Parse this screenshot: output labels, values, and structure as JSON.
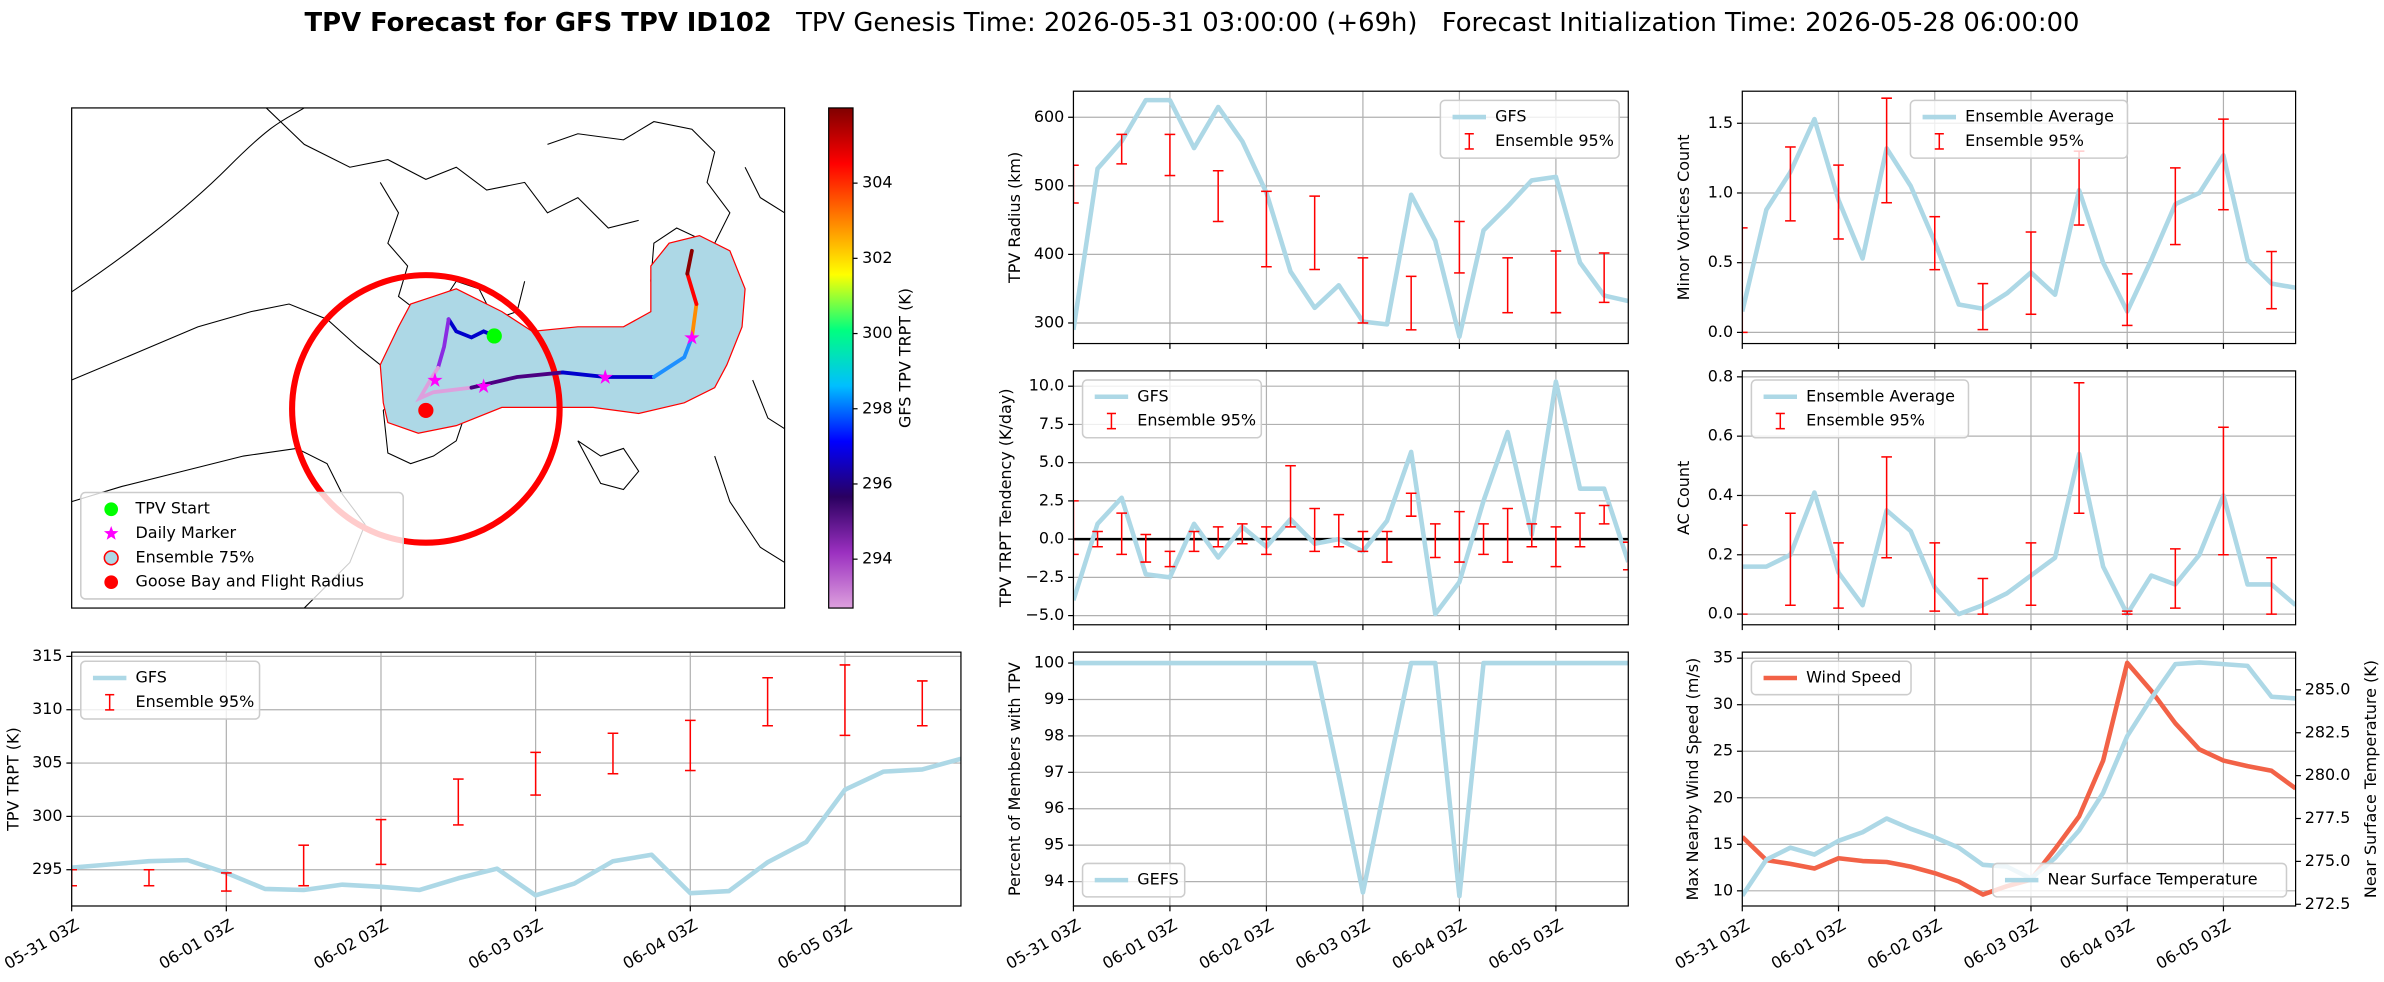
{
  "figure": {
    "title": "TPV Forecast for GFS TPV ID102",
    "genesis": "TPV Genesis Time: 2026-05-31 03:00:00 (+69h)",
    "init": "Forecast Initialization Time: 2026-05-28 06:00:00"
  },
  "chart_data": [
    {
      "type": "map",
      "legend": "lower left",
      "legend_items": [
        {
          "label": "TPV Start",
          "marker": "circle",
          "color": "#00ff00"
        },
        {
          "label": "Daily Marker",
          "marker": "star",
          "color": "#ff00ff"
        },
        {
          "label": "Ensemble 75%",
          "marker": "circle",
          "color": "#add8e6",
          "edgecolor": "#ff0000"
        },
        {
          "label": "Goose Bay and Flight Radius",
          "marker": "circle",
          "color": "#ff0000"
        }
      ],
      "colorbar": {
        "label": "GFS TPV TRPT (K)",
        "clim": [
          292.7,
          306.0
        ],
        "ticks": [
          294,
          296,
          298,
          300,
          302,
          304
        ],
        "colormap": [
          "#dda0dd",
          "#9b30c0",
          "#2a0060",
          "#0000ff",
          "#00bfff",
          "#00ff80",
          "#ffff00",
          "#ff8000",
          "#ff0000",
          "#800000"
        ]
      }
    },
    {
      "type": "line",
      "ylabel": "TPV Radius (km)",
      "grid": true,
      "legend": "upper right",
      "xtick_labels": false,
      "x": [
        "05-31 03Z",
        "05-31 09Z",
        "05-31 15Z",
        "05-31 21Z",
        "06-01 03Z",
        "06-01 09Z",
        "06-01 15Z",
        "06-01 21Z",
        "06-02 03Z",
        "06-02 09Z",
        "06-02 15Z",
        "06-02 21Z",
        "06-03 03Z",
        "06-03 09Z",
        "06-03 15Z",
        "06-03 21Z",
        "06-04 03Z",
        "06-04 09Z",
        "06-04 15Z",
        "06-04 21Z",
        "06-05 03Z",
        "06-05 09Z",
        "06-05 15Z",
        "06-05 21Z"
      ],
      "xlim": [
        "05-31 03Z",
        "06-05 21Z"
      ],
      "xticks": [
        "05-31 03Z",
        "06-01 03Z",
        "06-02 03Z",
        "06-03 03Z",
        "06-04 03Z",
        "06-05 03Z"
      ],
      "ylim": [
        270,
        638
      ],
      "yticks": [
        300,
        400,
        500,
        600
      ],
      "series": [
        {
          "name": "GFS",
          "color": "#add8e6",
          "values": [
            290,
            525,
            565,
            625,
            625,
            555,
            615,
            565,
            490,
            375,
            322,
            355,
            302,
            298,
            487,
            420,
            280,
            435,
            470,
            508,
            513,
            388,
            340,
            332
          ]
        }
      ],
      "errorbars": {
        "name": "Ensemble 95%",
        "color": "#ff0000",
        "x": [
          "05-31 03Z",
          "05-31 15Z",
          "06-01 03Z",
          "06-01 15Z",
          "06-02 03Z",
          "06-02 15Z",
          "06-03 03Z",
          "06-03 15Z",
          "06-04 03Z",
          "06-04 15Z",
          "06-05 03Z",
          "06-05 15Z"
        ],
        "low": [
          475,
          532,
          515,
          448,
          382,
          378,
          300,
          290,
          373,
          315,
          315,
          330
        ],
        "high": [
          530,
          575,
          575,
          522,
          492,
          485,
          395,
          368,
          448,
          395,
          405,
          402
        ]
      }
    },
    {
      "type": "line",
      "ylabel": "TPV TRPT Tendency (K/day)",
      "grid": true,
      "legend": "upper left",
      "xtick_labels": false,
      "hline": 0,
      "hline_color": "#000000",
      "x": [
        "05-31 03Z",
        "05-31 09Z",
        "05-31 15Z",
        "05-31 21Z",
        "06-01 03Z",
        "06-01 09Z",
        "06-01 15Z",
        "06-01 21Z",
        "06-02 03Z",
        "06-02 09Z",
        "06-02 15Z",
        "06-02 21Z",
        "06-03 03Z",
        "06-03 09Z",
        "06-03 15Z",
        "06-03 21Z",
        "06-04 03Z",
        "06-04 09Z",
        "06-04 15Z",
        "06-04 21Z",
        "06-05 03Z",
        "06-05 09Z",
        "06-05 15Z",
        "06-05 21Z"
      ],
      "xlim": [
        "05-31 03Z",
        "06-05 21Z"
      ],
      "xticks": [
        "05-31 03Z",
        "06-01 03Z",
        "06-02 03Z",
        "06-03 03Z",
        "06-04 03Z",
        "06-05 03Z"
      ],
      "ylim": [
        -5.6,
        11
      ],
      "yticks": [
        {
          "value": -5,
          "label": "−5.0"
        },
        {
          "value": -2.5,
          "label": "−2.5"
        },
        {
          "value": 0,
          "label": "0.0"
        },
        2.5,
        {
          "value": 5,
          "label": "5.0"
        },
        7.5,
        {
          "value": 10,
          "label": "10.0"
        }
      ],
      "series": [
        {
          "name": "GFS",
          "color": "#add8e6",
          "values": [
            -4.0,
            1.0,
            2.7,
            -2.3,
            -2.5,
            1.0,
            -1.2,
            0.8,
            -0.5,
            1.3,
            -0.3,
            0.0,
            -0.8,
            1.2,
            5.7,
            -4.9,
            -2.8,
            2.5,
            7.0,
            0.3,
            10.3,
            3.3,
            3.3,
            -1.5
          ]
        }
      ],
      "errorbars": {
        "name": "Ensemble 95%",
        "color": "#ff0000",
        "x": [
          "05-31 03Z",
          "05-31 09Z",
          "05-31 15Z",
          "05-31 21Z",
          "06-01 03Z",
          "06-01 09Z",
          "06-01 15Z",
          "06-01 21Z",
          "06-02 03Z",
          "06-02 09Z",
          "06-02 15Z",
          "06-02 21Z",
          "06-03 03Z",
          "06-03 09Z",
          "06-03 15Z",
          "06-03 21Z",
          "06-04 03Z",
          "06-04 09Z",
          "06-04 15Z",
          "06-04 21Z",
          "06-05 03Z",
          "06-05 09Z",
          "06-05 15Z",
          "06-05 21Z"
        ],
        "low": [
          -1.0,
          -0.5,
          -1.0,
          -1.5,
          -1.8,
          -0.8,
          -0.5,
          -0.3,
          -1.0,
          0.8,
          -0.8,
          -0.5,
          -0.8,
          -1.5,
          1.5,
          -1.2,
          -1.5,
          -1.0,
          -1.5,
          -0.5,
          -1.8,
          -0.5,
          1.0,
          -2.0
        ],
        "high": [
          2.5,
          0.5,
          1.7,
          0.3,
          -0.8,
          0.5,
          0.8,
          1.0,
          0.8,
          4.8,
          2.0,
          1.6,
          0.5,
          0.5,
          3.0,
          1.0,
          1.8,
          1.0,
          2.0,
          1.0,
          0.8,
          1.7,
          2.2,
          -0.2
        ]
      }
    },
    {
      "type": "line",
      "ylabel": "Percent of Members with TPV",
      "grid": true,
      "legend": "lower left",
      "x": [
        "05-31 03Z",
        "05-31 09Z",
        "05-31 15Z",
        "05-31 21Z",
        "06-01 03Z",
        "06-01 09Z",
        "06-01 15Z",
        "06-01 21Z",
        "06-02 03Z",
        "06-02 09Z",
        "06-02 15Z",
        "06-02 21Z",
        "06-03 03Z",
        "06-03 09Z",
        "06-03 15Z",
        "06-03 21Z",
        "06-04 03Z",
        "06-04 09Z",
        "06-04 15Z",
        "06-04 21Z",
        "06-05 03Z",
        "06-05 09Z",
        "06-05 15Z",
        "06-05 21Z"
      ],
      "xlim": [
        "05-31 03Z",
        "06-05 21Z"
      ],
      "xticks": [
        "05-31 03Z",
        "06-01 03Z",
        "06-02 03Z",
        "06-03 03Z",
        "06-04 03Z",
        "06-05 03Z"
      ],
      "ylim": [
        93.33,
        100.3
      ],
      "yticks": [
        94,
        95,
        96,
        97,
        98,
        99,
        100
      ],
      "series": [
        {
          "name": "GEFS",
          "color": "#add8e6",
          "values": [
            100,
            100,
            100,
            100,
            100,
            100,
            100,
            100,
            100,
            100,
            100,
            96.9,
            93.7,
            96.9,
            100,
            100,
            93.6,
            100,
            100,
            100,
            100,
            100,
            100,
            100
          ]
        }
      ]
    },
    {
      "type": "line",
      "ylabel": "Minor Vortices Count",
      "grid": true,
      "legend": "upper center",
      "xtick_labels": false,
      "x": [
        "05-31 03Z",
        "05-31 09Z",
        "05-31 15Z",
        "05-31 21Z",
        "06-01 03Z",
        "06-01 09Z",
        "06-01 15Z",
        "06-01 21Z",
        "06-02 03Z",
        "06-02 09Z",
        "06-02 15Z",
        "06-02 21Z",
        "06-03 03Z",
        "06-03 09Z",
        "06-03 15Z",
        "06-03 21Z",
        "06-04 03Z",
        "06-04 09Z",
        "06-04 15Z",
        "06-04 21Z",
        "06-05 03Z",
        "06-05 09Z",
        "06-05 15Z",
        "06-05 21Z"
      ],
      "xlim": [
        "05-31 03Z",
        "06-05 21Z"
      ],
      "xticks": [
        "05-31 03Z",
        "06-01 03Z",
        "06-02 03Z",
        "06-03 03Z",
        "06-04 03Z",
        "06-05 03Z"
      ],
      "ylim": [
        -0.08,
        1.73
      ],
      "yticks": [
        {
          "value": 0,
          "label": "0.0"
        },
        0.5,
        {
          "value": 1,
          "label": "1.0"
        },
        1.5
      ],
      "series": [
        {
          "name": "Ensemble Average",
          "color": "#add8e6",
          "values": [
            0.15,
            0.88,
            1.15,
            1.53,
            0.95,
            0.53,
            1.32,
            1.05,
            0.65,
            0.2,
            0.17,
            0.28,
            0.43,
            0.27,
            1.02,
            0.5,
            0.15,
            0.52,
            0.92,
            1.0,
            1.27,
            0.52,
            0.35,
            0.32
          ]
        }
      ],
      "errorbars": {
        "name": "Ensemble 95%",
        "color": "#ff0000",
        "x": [
          "05-31 03Z",
          "05-31 15Z",
          "06-01 03Z",
          "06-01 15Z",
          "06-02 03Z",
          "06-02 15Z",
          "06-03 03Z",
          "06-03 15Z",
          "06-04 03Z",
          "06-04 15Z",
          "06-05 03Z",
          "06-05 15Z"
        ],
        "low": [
          0.0,
          0.8,
          0.67,
          0.93,
          0.45,
          0.02,
          0.13,
          0.77,
          0.05,
          0.63,
          0.88,
          0.17
        ],
        "high": [
          0.75,
          1.33,
          1.2,
          1.68,
          0.83,
          0.35,
          0.72,
          1.3,
          0.42,
          1.18,
          1.53,
          0.58
        ]
      }
    },
    {
      "type": "line",
      "ylabel": "AC Count",
      "grid": true,
      "legend": "upper left",
      "xtick_labels": false,
      "x": [
        "05-31 03Z",
        "05-31 09Z",
        "05-31 15Z",
        "05-31 21Z",
        "06-01 03Z",
        "06-01 09Z",
        "06-01 15Z",
        "06-01 21Z",
        "06-02 03Z",
        "06-02 09Z",
        "06-02 15Z",
        "06-02 21Z",
        "06-03 03Z",
        "06-03 09Z",
        "06-03 15Z",
        "06-03 21Z",
        "06-04 03Z",
        "06-04 09Z",
        "06-04 15Z",
        "06-04 21Z",
        "06-05 03Z",
        "06-05 09Z",
        "06-05 15Z",
        "06-05 21Z"
      ],
      "xlim": [
        "05-31 03Z",
        "06-05 21Z"
      ],
      "xticks": [
        "05-31 03Z",
        "06-01 03Z",
        "06-02 03Z",
        "06-03 03Z",
        "06-04 03Z",
        "06-05 03Z"
      ],
      "ylim": [
        -0.036,
        0.82
      ],
      "yticks": [
        {
          "value": 0,
          "label": "0.0"
        },
        0.2,
        0.4,
        0.6,
        0.8
      ],
      "series": [
        {
          "name": "Ensemble Average",
          "color": "#add8e6",
          "values": [
            0.16,
            0.16,
            0.2,
            0.41,
            0.14,
            0.03,
            0.35,
            0.28,
            0.09,
            0.0,
            0.03,
            0.07,
            0.13,
            0.19,
            0.54,
            0.16,
            0.0,
            0.13,
            0.1,
            0.2,
            0.4,
            0.1,
            0.1,
            0.03
          ]
        }
      ],
      "errorbars": {
        "name": "Ensemble 95%",
        "color": "#ff0000",
        "x": [
          "05-31 03Z",
          "05-31 15Z",
          "06-01 03Z",
          "06-01 15Z",
          "06-02 03Z",
          "06-02 15Z",
          "06-03 03Z",
          "06-03 15Z",
          "06-04 03Z",
          "06-04 15Z",
          "06-05 03Z",
          "06-05 15Z"
        ],
        "low": [
          0.0,
          0.03,
          0.02,
          0.19,
          0.01,
          0.0,
          0.03,
          0.34,
          0.0,
          0.02,
          0.2,
          0.0
        ],
        "high": [
          0.3,
          0.34,
          0.24,
          0.53,
          0.24,
          0.12,
          0.24,
          0.78,
          0.01,
          0.22,
          0.63,
          0.19
        ]
      }
    },
    {
      "type": "line",
      "ylabel": "Max Nearby Wind Speed (m/s)",
      "ylabel_color": "#f26247",
      "y2label": "Near Surface Temperature (K)",
      "y2label_color": "#4169e1",
      "grid": true,
      "legend": "upper left",
      "legend2": "lower right",
      "x": [
        "05-31 03Z",
        "05-31 09Z",
        "05-31 15Z",
        "05-31 21Z",
        "06-01 03Z",
        "06-01 09Z",
        "06-01 15Z",
        "06-01 21Z",
        "06-02 03Z",
        "06-02 09Z",
        "06-02 15Z",
        "06-02 21Z",
        "06-03 03Z",
        "06-03 09Z",
        "06-03 15Z",
        "06-03 21Z",
        "06-04 03Z",
        "06-04 09Z",
        "06-04 15Z",
        "06-04 21Z",
        "06-05 03Z",
        "06-05 09Z",
        "06-05 15Z",
        "06-05 21Z"
      ],
      "xlim": [
        "05-31 03Z",
        "06-05 21Z"
      ],
      "xticks": [
        "05-31 03Z",
        "06-01 03Z",
        "06-02 03Z",
        "06-03 03Z",
        "06-04 03Z",
        "06-05 03Z"
      ],
      "ylim": [
        8.37,
        35.65
      ],
      "yticks": [
        10,
        15,
        20,
        25,
        30,
        35
      ],
      "y2lim": [
        272.4,
        287.2
      ],
      "y2ticks": [
        272.5,
        {
          "value": 275,
          "label": "275.0"
        },
        277.5,
        {
          "value": 280,
          "label": "280.0"
        },
        282.5,
        {
          "value": 285,
          "label": "285.0"
        }
      ],
      "series": [
        {
          "name": "Wind Speed",
          "color": "#f26247",
          "values": [
            15.8,
            13.3,
            12.9,
            12.4,
            13.5,
            13.2,
            13.1,
            12.6,
            11.9,
            11.0,
            9.6,
            10.5,
            11.2,
            14.5,
            18.0,
            24.0,
            34.5,
            31.5,
            28.0,
            25.2,
            24.0,
            23.4,
            22.9,
            21.0
          ]
        },
        {
          "name": "Near Surface Temperature",
          "color": "#add8e6",
          "axis": "y2",
          "values": [
            273.0,
            275.1,
            275.8,
            275.4,
            276.2,
            276.7,
            277.5,
            276.9,
            276.4,
            275.8,
            274.8,
            274.7,
            274.0,
            275.2,
            276.8,
            279.0,
            282.3,
            284.5,
            286.5,
            286.6,
            286.5,
            286.4,
            284.6,
            284.5
          ]
        }
      ]
    },
    {
      "type": "line",
      "ylabel": "TPV TRPT (K)",
      "grid": true,
      "legend": "upper left",
      "x": [
        "05-31 03Z",
        "05-31 09Z",
        "05-31 15Z",
        "05-31 21Z",
        "06-01 03Z",
        "06-01 09Z",
        "06-01 15Z",
        "06-01 21Z",
        "06-02 03Z",
        "06-02 09Z",
        "06-02 15Z",
        "06-02 21Z",
        "06-03 03Z",
        "06-03 09Z",
        "06-03 15Z",
        "06-03 21Z",
        "06-04 03Z",
        "06-04 09Z",
        "06-04 15Z",
        "06-04 21Z",
        "06-05 03Z",
        "06-05 09Z",
        "06-05 15Z",
        "06-05 21Z"
      ],
      "xlim": [
        "05-31 03Z",
        "06-05 21Z"
      ],
      "xticks": [
        "05-31 03Z",
        "06-01 03Z",
        "06-02 03Z",
        "06-03 03Z",
        "06-04 03Z",
        "06-05 03Z"
      ],
      "ylim": [
        291.6,
        315.4
      ],
      "yticks": [
        295,
        300,
        305,
        310,
        315
      ],
      "series": [
        {
          "name": "GFS",
          "color": "#add8e6",
          "values": [
            295.2,
            295.5,
            295.8,
            295.9,
            294.7,
            293.2,
            293.1,
            293.6,
            293.4,
            293.1,
            294.2,
            295.1,
            292.6,
            293.7,
            295.8,
            296.4,
            292.8,
            293.0,
            295.7,
            297.6,
            302.5,
            304.2,
            304.4,
            305.4
          ]
        }
      ],
      "errorbars": {
        "name": "Ensemble 95%",
        "color": "#ff0000",
        "x": [
          "05-31 03Z",
          "05-31 15Z",
          "06-01 03Z",
          "06-01 15Z",
          "06-02 03Z",
          "06-02 15Z",
          "06-03 03Z",
          "06-03 15Z",
          "06-04 03Z",
          "06-04 15Z",
          "06-05 03Z",
          "06-05 15Z"
        ],
        "low": [
          293.5,
          293.5,
          293.0,
          293.5,
          295.5,
          299.2,
          302.0,
          304.0,
          304.3,
          308.5,
          307.6,
          308.5
        ],
        "high": [
          295.0,
          295.0,
          294.7,
          297.3,
          299.7,
          303.5,
          306.0,
          307.8,
          309.0,
          313.0,
          314.2,
          312.7
        ]
      }
    }
  ]
}
